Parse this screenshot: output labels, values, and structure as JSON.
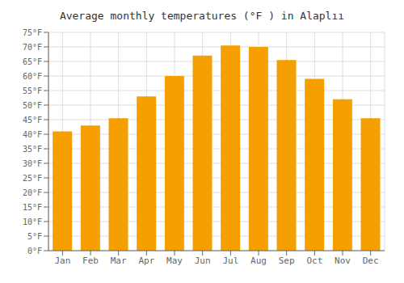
{
  "chart_data": {
    "type": "bar",
    "title": "Average monthly temperatures (°F ) in Alaplıı",
    "categories": [
      "Jan",
      "Feb",
      "Mar",
      "Apr",
      "May",
      "Jun",
      "Jul",
      "Aug",
      "Sep",
      "Oct",
      "Nov",
      "Dec"
    ],
    "values": [
      41,
      43,
      45.5,
      53,
      60,
      67,
      70.5,
      70,
      65.5,
      59,
      52,
      45.5
    ],
    "color": "#F5A000",
    "ylim": [
      0,
      75
    ],
    "yticks": [
      {
        "value": 0,
        "label": "0°F"
      },
      {
        "value": 5,
        "label": "5°F"
      },
      {
        "value": 10,
        "label": "10°F"
      },
      {
        "value": 15,
        "label": "15°F"
      },
      {
        "value": 20,
        "label": "20°F"
      },
      {
        "value": 25,
        "label": "25°F"
      },
      {
        "value": 30,
        "label": "30°F"
      },
      {
        "value": 35,
        "label": "35°F"
      },
      {
        "value": 40,
        "label": "40°F"
      },
      {
        "value": 45,
        "label": "45°F"
      },
      {
        "value": 50,
        "label": "50°F"
      },
      {
        "value": 55,
        "label": "55°F"
      },
      {
        "value": 60,
        "label": "60°F"
      },
      {
        "value": 65,
        "label": "65°F"
      },
      {
        "value": 70,
        "label": "70°F"
      },
      {
        "value": 75,
        "label": "75°F"
      }
    ],
    "grid": true
  }
}
